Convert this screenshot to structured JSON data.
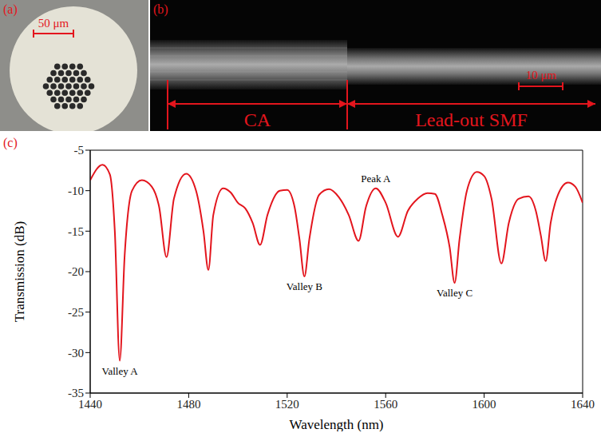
{
  "panels": [
    {
      "label": "(a)",
      "scale_bar": "50 μm"
    },
    {
      "label": "(b)",
      "scale_bar": "10 μm",
      "regions": [
        "CA",
        "Lead-out SMF"
      ]
    }
  ],
  "chart_data": {
    "type": "line",
    "panel_label": "(c)",
    "x_label": "Wavelength (nm)",
    "y_label": "Transmission (dB)",
    "color": "#e3151d",
    "xlim": [
      1440,
      1640
    ],
    "xticks": [
      1440,
      1480,
      1520,
      1560,
      1600,
      1640
    ],
    "ylim": [
      -35,
      -5
    ],
    "yticks": [
      -35,
      -30,
      -25,
      -20,
      -15,
      -10,
      -5
    ],
    "grid": false,
    "x": [
      1440,
      1445,
      1448,
      1450,
      1452,
      1454,
      1457,
      1461,
      1465,
      1468,
      1471,
      1474,
      1479,
      1483,
      1486,
      1488,
      1490,
      1494,
      1497,
      1500,
      1503,
      1506,
      1509,
      1512,
      1517,
      1520,
      1523,
      1525,
      1527,
      1529,
      1533,
      1537,
      1541,
      1545,
      1549,
      1552,
      1556,
      1560,
      1565,
      1569,
      1573,
      1577,
      1580,
      1583,
      1586,
      1588,
      1590,
      1593,
      1597,
      1600,
      1603,
      1607,
      1610,
      1614,
      1618,
      1621,
      1623,
      1625,
      1627,
      1630,
      1634,
      1637,
      1640
    ],
    "values": [
      -8.7,
      -6.8,
      -8,
      -15,
      -31,
      -18,
      -10,
      -8.7,
      -9.5,
      -12,
      -18.2,
      -11,
      -7.9,
      -10,
      -15,
      -19.8,
      -13,
      -9.7,
      -10.2,
      -11.5,
      -12.2,
      -14,
      -16.7,
      -13,
      -10,
      -9.9,
      -12,
      -16,
      -20.6,
      -16,
      -10.5,
      -9.8,
      -10.8,
      -13,
      -16.2,
      -12,
      -9.7,
      -11.5,
      -15.7,
      -12.5,
      -11,
      -10.3,
      -10.4,
      -13,
      -17,
      -21.4,
      -16,
      -10,
      -7.7,
      -8.2,
      -11,
      -19,
      -14,
      -11,
      -10.7,
      -12.5,
      -15.5,
      -18.7,
      -14,
      -10.5,
      -9,
      -9.5,
      -11.5
    ],
    "annotations": [
      {
        "text": "Valley A",
        "x": 1452,
        "position": "bottom"
      },
      {
        "text": "Valley B",
        "x": 1527,
        "position": "bottom"
      },
      {
        "text": "Valley C",
        "x": 1588,
        "position": "bottom"
      },
      {
        "text": "Peak A",
        "x": 1556,
        "position": "top"
      }
    ]
  }
}
